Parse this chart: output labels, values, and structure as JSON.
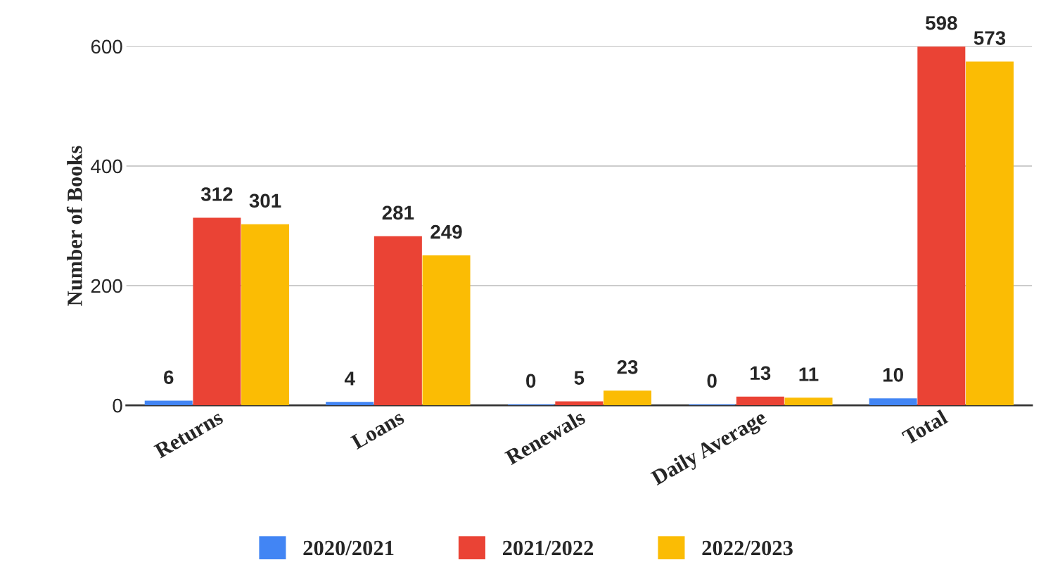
{
  "chart_data": {
    "type": "bar",
    "ylabel": "Number of Books",
    "categories": [
      "Returns",
      "Loans",
      "Renewals",
      "Daily Average",
      "Total"
    ],
    "series": [
      {
        "name": "2020/2021",
        "color": "#4285f4",
        "values": [
          6,
          4,
          0,
          0,
          10
        ]
      },
      {
        "name": "2021/2022",
        "color": "#ea4335",
        "values": [
          312,
          281,
          5,
          13,
          598
        ]
      },
      {
        "name": "2022/2023",
        "color": "#fbbc04",
        "values": [
          301,
          249,
          23,
          11,
          573
        ]
      }
    ],
    "ylim": [
      0,
      600
    ],
    "yticks": [
      0,
      200,
      400,
      600
    ],
    "grid": "y",
    "legend": "bottom",
    "data_labels": true
  }
}
